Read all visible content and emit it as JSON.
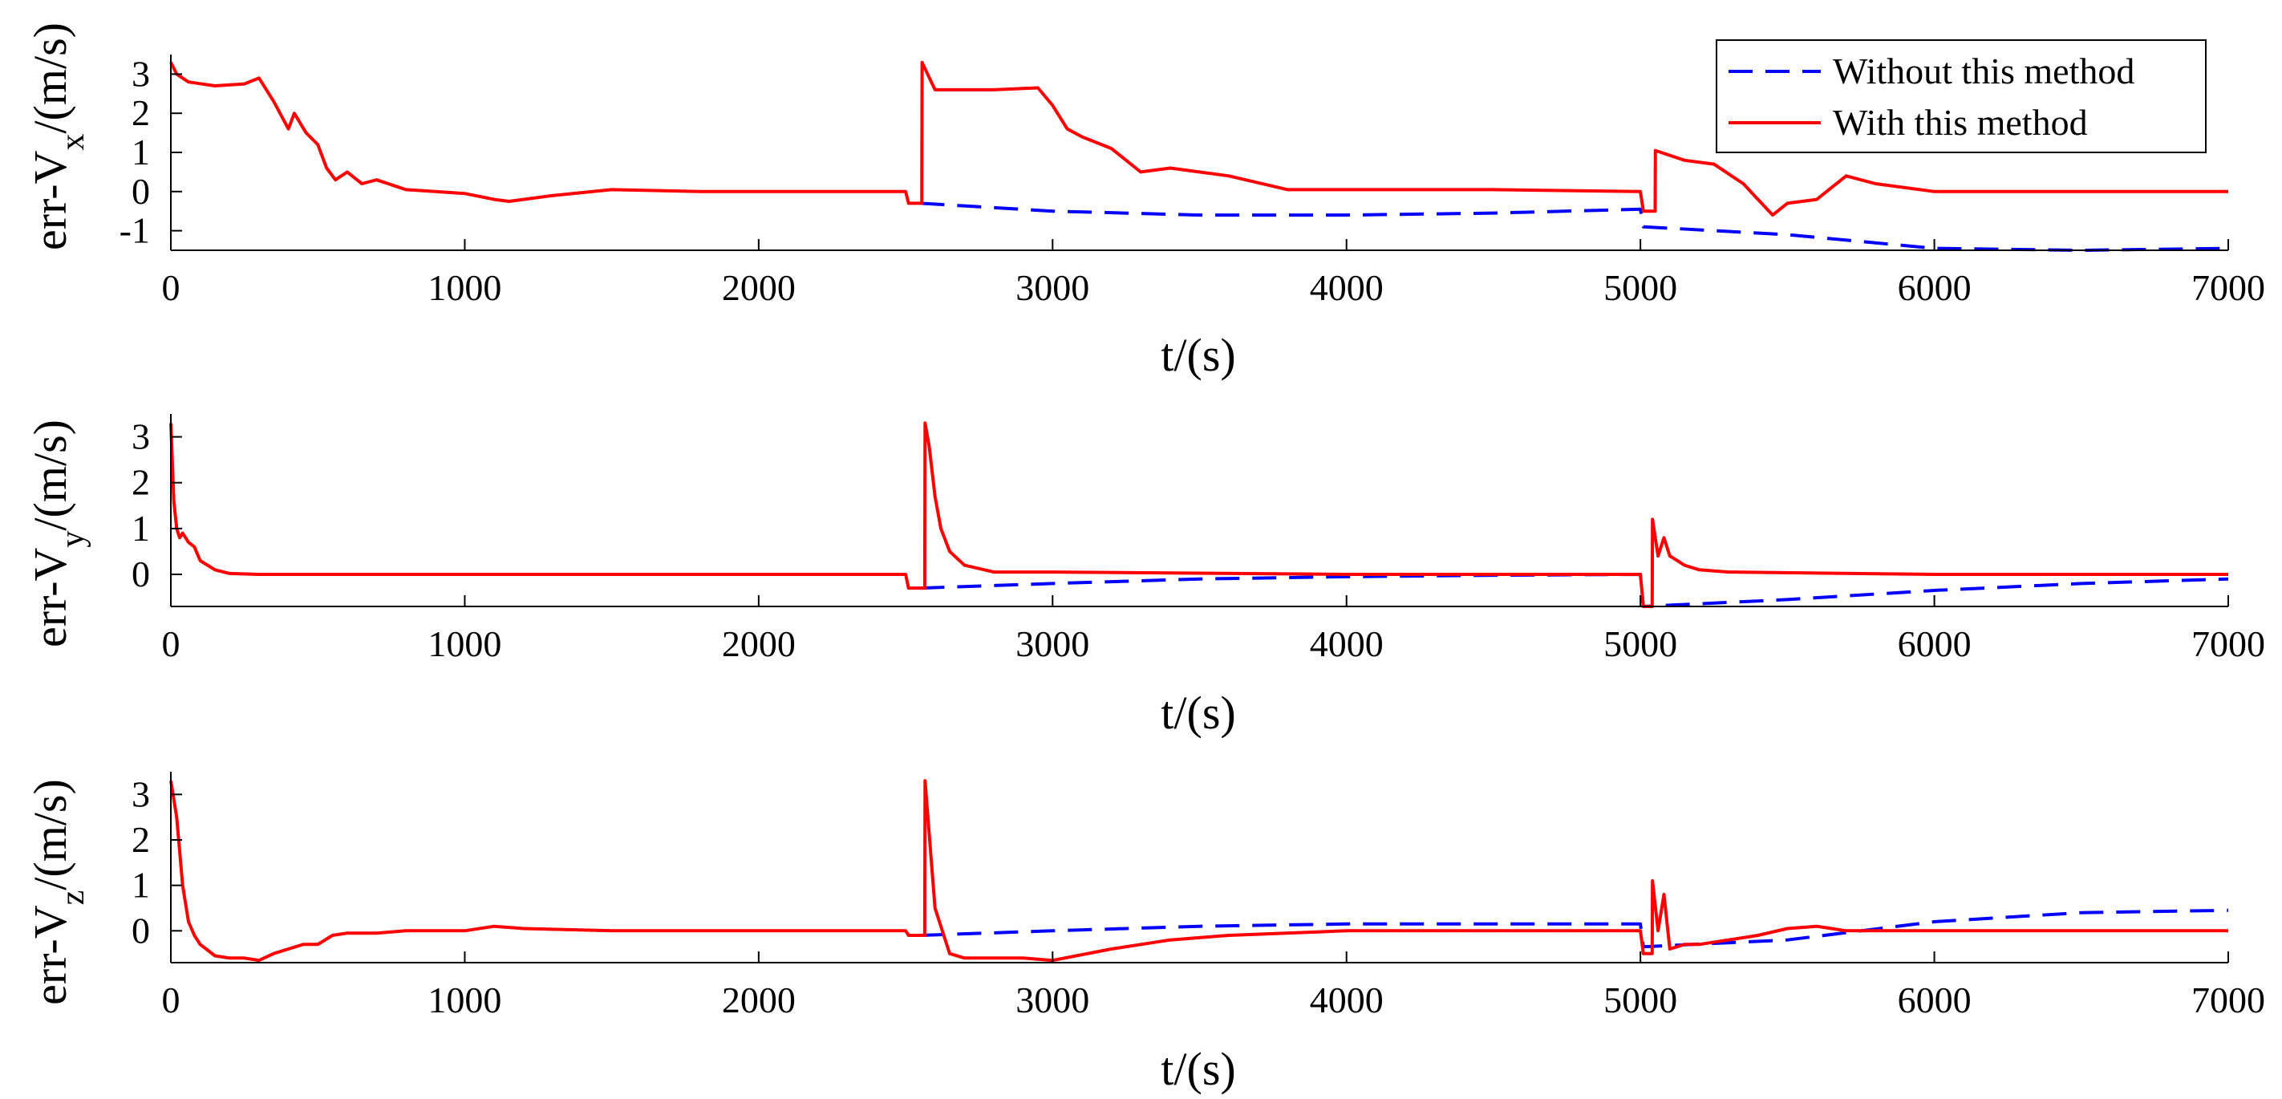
{
  "legend": {
    "entries": [
      {
        "label": "Without this method",
        "color": "#0000ff",
        "style": "dashed"
      },
      {
        "label": "With this method",
        "color": "#ff0000",
        "style": "solid"
      }
    ],
    "location": "top-right of first panel"
  },
  "panels": [
    {
      "ylabel_main": "err-V",
      "ylabel_sub": "x",
      "ylabel_unit": "/(m/s)",
      "xlabel": "t/(s)"
    },
    {
      "ylabel_main": "err-V",
      "ylabel_sub": "y",
      "ylabel_unit": "/(m/s)",
      "xlabel": "t/(s)"
    },
    {
      "ylabel_main": "err-V",
      "ylabel_sub": "z",
      "ylabel_unit": "/(m/s)",
      "xlabel": "t/(s)"
    }
  ],
  "chart_data": [
    {
      "type": "line",
      "xlabel": "t/(s)",
      "ylabel": "err-Vx/(m/s)",
      "xlim": [
        0,
        7000
      ],
      "ylim": [
        -1.5,
        3.5
      ],
      "xticks": [
        0,
        1000,
        2000,
        3000,
        4000,
        5000,
        6000,
        7000
      ],
      "yticks": [
        -1,
        0,
        1,
        2,
        3
      ],
      "grid": false,
      "series": [
        {
          "name": "Without this method",
          "color": "#0000ff",
          "style": "dashed",
          "x": [
            2550,
            3000,
            3500,
            4000,
            4500,
            5000,
            5010,
            5500,
            6000,
            6500,
            7000
          ],
          "y": [
            -0.3,
            -0.5,
            -0.6,
            -0.6,
            -0.55,
            -0.45,
            -0.9,
            -1.1,
            -1.45,
            -1.5,
            -1.45
          ]
        },
        {
          "name": "With this method",
          "color": "#ff0000",
          "style": "solid",
          "x": [
            0,
            20,
            60,
            150,
            250,
            300,
            350,
            400,
            420,
            460,
            500,
            530,
            560,
            600,
            650,
            700,
            800,
            900,
            1000,
            1100,
            1150,
            1200,
            1300,
            1500,
            1800,
            2000,
            2250,
            2500,
            2510,
            2555,
            2556,
            2600,
            2800,
            2950,
            3000,
            3050,
            3100,
            3200,
            3300,
            3400,
            3600,
            3800,
            4000,
            4500,
            5000,
            5010,
            5050,
            5051,
            5150,
            5250,
            5350,
            5400,
            5450,
            5500,
            5600,
            5700,
            5800,
            6000,
            6500,
            7000
          ],
          "y": [
            3.3,
            3.0,
            2.8,
            2.7,
            2.75,
            2.9,
            2.3,
            1.6,
            2.0,
            1.5,
            1.2,
            0.6,
            0.3,
            0.5,
            0.2,
            0.3,
            0.05,
            0.0,
            -0.05,
            -0.2,
            -0.25,
            -0.2,
            -0.1,
            0.05,
            0.0,
            0.0,
            0.0,
            0.0,
            -0.3,
            -0.3,
            3.3,
            2.6,
            2.6,
            2.65,
            2.2,
            1.6,
            1.4,
            1.1,
            0.5,
            0.6,
            0.4,
            0.05,
            0.05,
            0.05,
            0.0,
            -0.5,
            -0.5,
            1.05,
            0.8,
            0.7,
            0.2,
            -0.2,
            -0.6,
            -0.3,
            -0.2,
            0.4,
            0.2,
            0.0,
            0.0,
            0.0
          ]
        }
      ]
    },
    {
      "type": "line",
      "xlabel": "t/(s)",
      "ylabel": "err-Vy/(m/s)",
      "xlim": [
        0,
        7000
      ],
      "ylim": [
        -0.7,
        3.5
      ],
      "xticks": [
        0,
        1000,
        2000,
        3000,
        4000,
        5000,
        6000,
        7000
      ],
      "yticks": [
        0,
        1,
        2,
        3
      ],
      "grid": false,
      "series": [
        {
          "name": "Without this method",
          "color": "#0000ff",
          "style": "dashed",
          "x": [
            2550,
            3000,
            3500,
            4000,
            4500,
            5000,
            5010,
            5500,
            6000,
            6500,
            7000
          ],
          "y": [
            -0.3,
            -0.2,
            -0.1,
            -0.05,
            -0.02,
            0.0,
            -0.7,
            -0.55,
            -0.35,
            -0.2,
            -0.1
          ]
        },
        {
          "name": "With this method",
          "color": "#ff0000",
          "style": "solid",
          "x": [
            0,
            10,
            20,
            30,
            40,
            60,
            80,
            100,
            150,
            200,
            300,
            500,
            1000,
            2000,
            2500,
            2510,
            2565,
            2566,
            2580,
            2600,
            2620,
            2650,
            2700,
            2800,
            3000,
            4000,
            5000,
            5010,
            5040,
            5041,
            5060,
            5080,
            5100,
            5150,
            5200,
            5300,
            6000,
            7000
          ],
          "y": [
            3.3,
            1.6,
            1.0,
            0.8,
            0.9,
            0.7,
            0.6,
            0.3,
            0.1,
            0.02,
            0.0,
            0.0,
            0.0,
            0.0,
            0.0,
            -0.3,
            -0.3,
            3.3,
            2.8,
            1.7,
            1.0,
            0.5,
            0.2,
            0.05,
            0.05,
            0.0,
            0.0,
            -0.7,
            -0.7,
            1.2,
            0.4,
            0.8,
            0.4,
            0.2,
            0.1,
            0.05,
            0.0,
            0.0
          ]
        }
      ]
    },
    {
      "type": "line",
      "xlabel": "t/(s)",
      "ylabel": "err-Vz/(m/s)",
      "xlim": [
        0,
        7000
      ],
      "ylim": [
        -0.7,
        3.5
      ],
      "xticks": [
        0,
        1000,
        2000,
        3000,
        4000,
        5000,
        6000,
        7000
      ],
      "yticks": [
        0,
        1,
        2,
        3
      ],
      "grid": false,
      "series": [
        {
          "name": "Without this method",
          "color": "#0000ff",
          "style": "dashed",
          "x": [
            2550,
            3000,
            3500,
            4000,
            4500,
            5000,
            5010,
            5500,
            6000,
            6500,
            7000
          ],
          "y": [
            -0.1,
            0.0,
            0.1,
            0.15,
            0.15,
            0.15,
            -0.35,
            -0.2,
            0.2,
            0.4,
            0.45
          ]
        },
        {
          "name": "With this method",
          "color": "#ff0000",
          "style": "solid",
          "x": [
            0,
            20,
            40,
            60,
            80,
            100,
            150,
            200,
            250,
            300,
            350,
            400,
            450,
            500,
            550,
            600,
            700,
            800,
            1000,
            1100,
            1200,
            1500,
            2000,
            2500,
            2510,
            2565,
            2566,
            2600,
            2650,
            2700,
            2800,
            2900,
            3000,
            3200,
            3400,
            3600,
            4000,
            5000,
            5010,
            5040,
            5041,
            5060,
            5080,
            5100,
            5150,
            5200,
            5300,
            5400,
            5500,
            5600,
            5700,
            5800,
            6000,
            6500,
            7000
          ],
          "y": [
            3.3,
            2.5,
            1.0,
            0.2,
            -0.1,
            -0.3,
            -0.55,
            -0.6,
            -0.6,
            -0.65,
            -0.5,
            -0.4,
            -0.3,
            -0.3,
            -0.1,
            -0.05,
            -0.05,
            0.0,
            0.0,
            0.1,
            0.05,
            0.0,
            0.0,
            0.0,
            -0.1,
            -0.1,
            3.3,
            0.5,
            -0.5,
            -0.6,
            -0.6,
            -0.6,
            -0.65,
            -0.4,
            -0.2,
            -0.1,
            0.0,
            0.0,
            -0.5,
            -0.5,
            1.1,
            0.0,
            0.8,
            -0.4,
            -0.3,
            -0.3,
            -0.2,
            -0.1,
            0.05,
            0.1,
            0.0,
            0.0,
            0.0,
            0.0,
            0.0
          ]
        }
      ]
    }
  ]
}
